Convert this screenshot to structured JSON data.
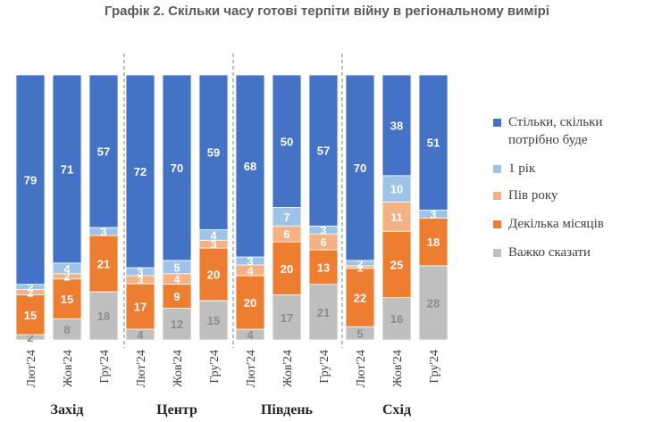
{
  "chart_data": {
    "type": "stacked_bar",
    "title": "Графік 2. Скільки часу готові терпіти війну в регіональному вимірі",
    "series": [
      {
        "name": "Важко сказати",
        "color": "#bfbfbf"
      },
      {
        "name": "Декілька місяців",
        "color": "#ed7d31"
      },
      {
        "name": "Пів року",
        "color": "#f4b183"
      },
      {
        "name": "1 рік",
        "color": "#9dc3e6"
      },
      {
        "name": "Стільки, скільки потрібно буде",
        "color": "#4472c4"
      }
    ],
    "legend_order": [
      4,
      3,
      2,
      1,
      0
    ],
    "groups": [
      {
        "name": "Захід",
        "bars": [
          {
            "label": "Лют'24",
            "values": [
              2,
              15,
              2,
              2,
              79
            ]
          },
          {
            "label": "Жов'24",
            "values": [
              8,
              15,
              2,
              4,
              71
            ]
          },
          {
            "label": "Гру'24",
            "values": [
              18,
              21,
              0,
              3,
              57
            ]
          }
        ]
      },
      {
        "name": "Центр",
        "bars": [
          {
            "label": "Лют'24",
            "values": [
              4,
              17,
              3,
              3,
              72
            ]
          },
          {
            "label": "Жов'24",
            "values": [
              12,
              9,
              4,
              5,
              70
            ]
          },
          {
            "label": "Гру'24",
            "values": [
              15,
              20,
              3,
              4,
              59
            ]
          }
        ]
      },
      {
        "name": "Південь",
        "bars": [
          {
            "label": "Лют'24",
            "values": [
              4,
              20,
              4,
              3,
              68
            ]
          },
          {
            "label": "Жов'24",
            "values": [
              17,
              20,
              6,
              7,
              50
            ]
          },
          {
            "label": "Гру'24",
            "values": [
              21,
              13,
              6,
              3,
              57
            ]
          }
        ]
      },
      {
        "name": "Схід",
        "bars": [
          {
            "label": "Лют'24",
            "values": [
              5,
              22,
              1,
              2,
              70
            ]
          },
          {
            "label": "Жов'24",
            "values": [
              16,
              25,
              11,
              10,
              38
            ]
          },
          {
            "label": "Гру'24",
            "values": [
              28,
              18,
              0,
              3,
              51
            ]
          }
        ]
      }
    ],
    "ylim": [
      0,
      100
    ]
  }
}
